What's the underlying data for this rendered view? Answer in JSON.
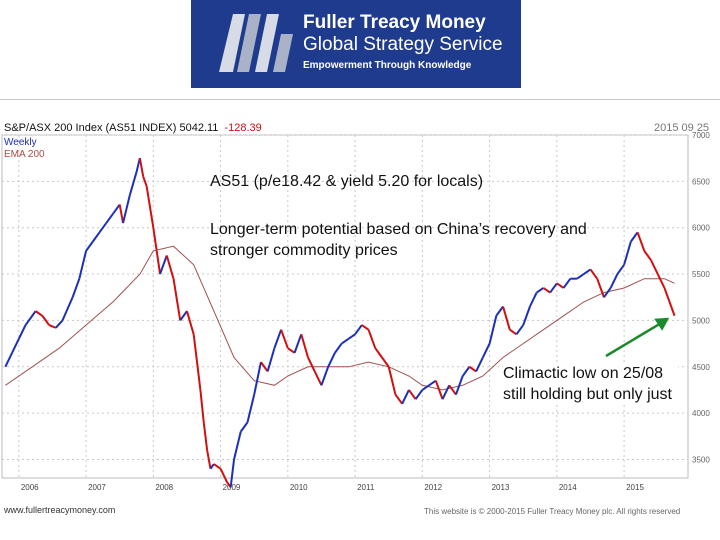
{
  "header": {
    "brand_name": "Fuller Treacy Money",
    "brand_service": "Global Strategy Service",
    "tagline": "Empowerment Through Knowledge",
    "brand_color": "#1f3b8e"
  },
  "chart_header": {
    "title": "S&P/ASX 200 Index (AS51 INDEX) 5042.11",
    "change": "-128.39",
    "date": "2015 09 25"
  },
  "legend": {
    "series1": "Weekly",
    "series2": "EMA 200"
  },
  "annotations": {
    "valuation": "AS51 (p/e18.42 & yield 5.20 for locals)",
    "thesis": "Longer-term potential based on China’s recovery and stronger commodity prices",
    "low": "Climactic low on 25/08 still holding but only just"
  },
  "footer": {
    "website": "www.fullertreacymoney.com",
    "copyright": "This website is © 2000-2015 Fuller Treacy Money plc. All rights reserved"
  },
  "chart_data": {
    "type": "line",
    "title": "S&P/ASX 200 Index (AS51 INDEX) 5042.11",
    "xlabel": "",
    "ylabel": "",
    "xlim": [
      2005.75,
      2015.95
    ],
    "ylim": [
      3300,
      7000
    ],
    "x_ticks": [
      2006,
      2007,
      2008,
      2009,
      2010,
      2011,
      2012,
      2013,
      2014,
      2015
    ],
    "y_ticks": [
      3500,
      4000,
      4500,
      5000,
      5500,
      6000,
      6500,
      7000
    ],
    "grid": true,
    "axis_side": "right",
    "colors": {
      "up": "#1c2fb8",
      "down": "#d01010",
      "ema": "#a05050",
      "arrow": "#1a8a2a"
    },
    "series": [
      {
        "name": "Weekly",
        "x": [
          2005.8,
          2005.9,
          2006.0,
          2006.1,
          2006.25,
          2006.35,
          2006.45,
          2006.55,
          2006.65,
          2006.8,
          2006.9,
          2007.0,
          2007.1,
          2007.2,
          2007.3,
          2007.4,
          2007.5,
          2007.55,
          2007.65,
          2007.75,
          2007.8,
          2007.85,
          2007.9,
          2008.0,
          2008.05,
          2008.1,
          2008.2,
          2008.3,
          2008.4,
          2008.5,
          2008.6,
          2008.7,
          2008.75,
          2008.8,
          2008.85,
          2008.9,
          2009.0,
          2009.1,
          2009.15,
          2009.2,
          2009.3,
          2009.4,
          2009.5,
          2009.6,
          2009.7,
          2009.8,
          2009.9,
          2010.0,
          2010.1,
          2010.2,
          2010.3,
          2010.4,
          2010.5,
          2010.6,
          2010.7,
          2010.8,
          2010.9,
          2011.0,
          2011.1,
          2011.2,
          2011.3,
          2011.4,
          2011.5,
          2011.6,
          2011.7,
          2011.8,
          2011.9,
          2012.0,
          2012.1,
          2012.2,
          2012.3,
          2012.4,
          2012.5,
          2012.6,
          2012.7,
          2012.8,
          2012.9,
          2013.0,
          2013.1,
          2013.2,
          2013.3,
          2013.4,
          2013.5,
          2013.6,
          2013.7,
          2013.8,
          2013.9,
          2014.0,
          2014.1,
          2014.2,
          2014.3,
          2014.4,
          2014.5,
          2014.6,
          2014.7,
          2014.8,
          2014.9,
          2015.0,
          2015.1,
          2015.2,
          2015.3,
          2015.4,
          2015.5,
          2015.6,
          2015.7,
          2015.75
        ],
        "values": [
          4500,
          4650,
          4800,
          4950,
          5100,
          5050,
          4950,
          4920,
          5000,
          5250,
          5450,
          5750,
          5850,
          5950,
          6050,
          6150,
          6250,
          6050,
          6350,
          6600,
          6750,
          6550,
          6450,
          6000,
          5750,
          5500,
          5700,
          5450,
          5000,
          5100,
          4850,
          4250,
          3900,
          3600,
          3400,
          3450,
          3400,
          3250,
          3200,
          3500,
          3800,
          3900,
          4200,
          4550,
          4450,
          4700,
          4900,
          4700,
          4650,
          4850,
          4600,
          4450,
          4300,
          4500,
          4650,
          4750,
          4800,
          4850,
          4950,
          4900,
          4700,
          4600,
          4500,
          4200,
          4100,
          4250,
          4150,
          4250,
          4300,
          4350,
          4150,
          4300,
          4200,
          4400,
          4500,
          4450,
          4600,
          4750,
          5050,
          5150,
          4900,
          4850,
          4950,
          5150,
          5300,
          5350,
          5300,
          5400,
          5350,
          5450,
          5450,
          5500,
          5550,
          5450,
          5250,
          5350,
          5500,
          5600,
          5850,
          5950,
          5750,
          5650,
          5500,
          5350,
          5150,
          5050
        ]
      },
      {
        "name": "EMA 200",
        "x": [
          2005.8,
          2006.2,
          2006.6,
          2007.0,
          2007.4,
          2007.8,
          2008.0,
          2008.3,
          2008.6,
          2008.9,
          2009.2,
          2009.5,
          2009.8,
          2010.0,
          2010.3,
          2010.6,
          2010.9,
          2011.2,
          2011.5,
          2011.8,
          2012.0,
          2012.3,
          2012.6,
          2012.9,
          2013.2,
          2013.5,
          2013.8,
          2014.1,
          2014.4,
          2014.7,
          2015.0,
          2015.3,
          2015.6,
          2015.75
        ],
        "values": [
          4300,
          4500,
          4700,
          4950,
          5200,
          5500,
          5750,
          5800,
          5600,
          5100,
          4600,
          4350,
          4300,
          4400,
          4500,
          4500,
          4500,
          4550,
          4500,
          4400,
          4300,
          4250,
          4300,
          4400,
          4600,
          4750,
          4900,
          5050,
          5200,
          5300,
          5350,
          5450,
          5450,
          5400
        ]
      }
    ]
  }
}
